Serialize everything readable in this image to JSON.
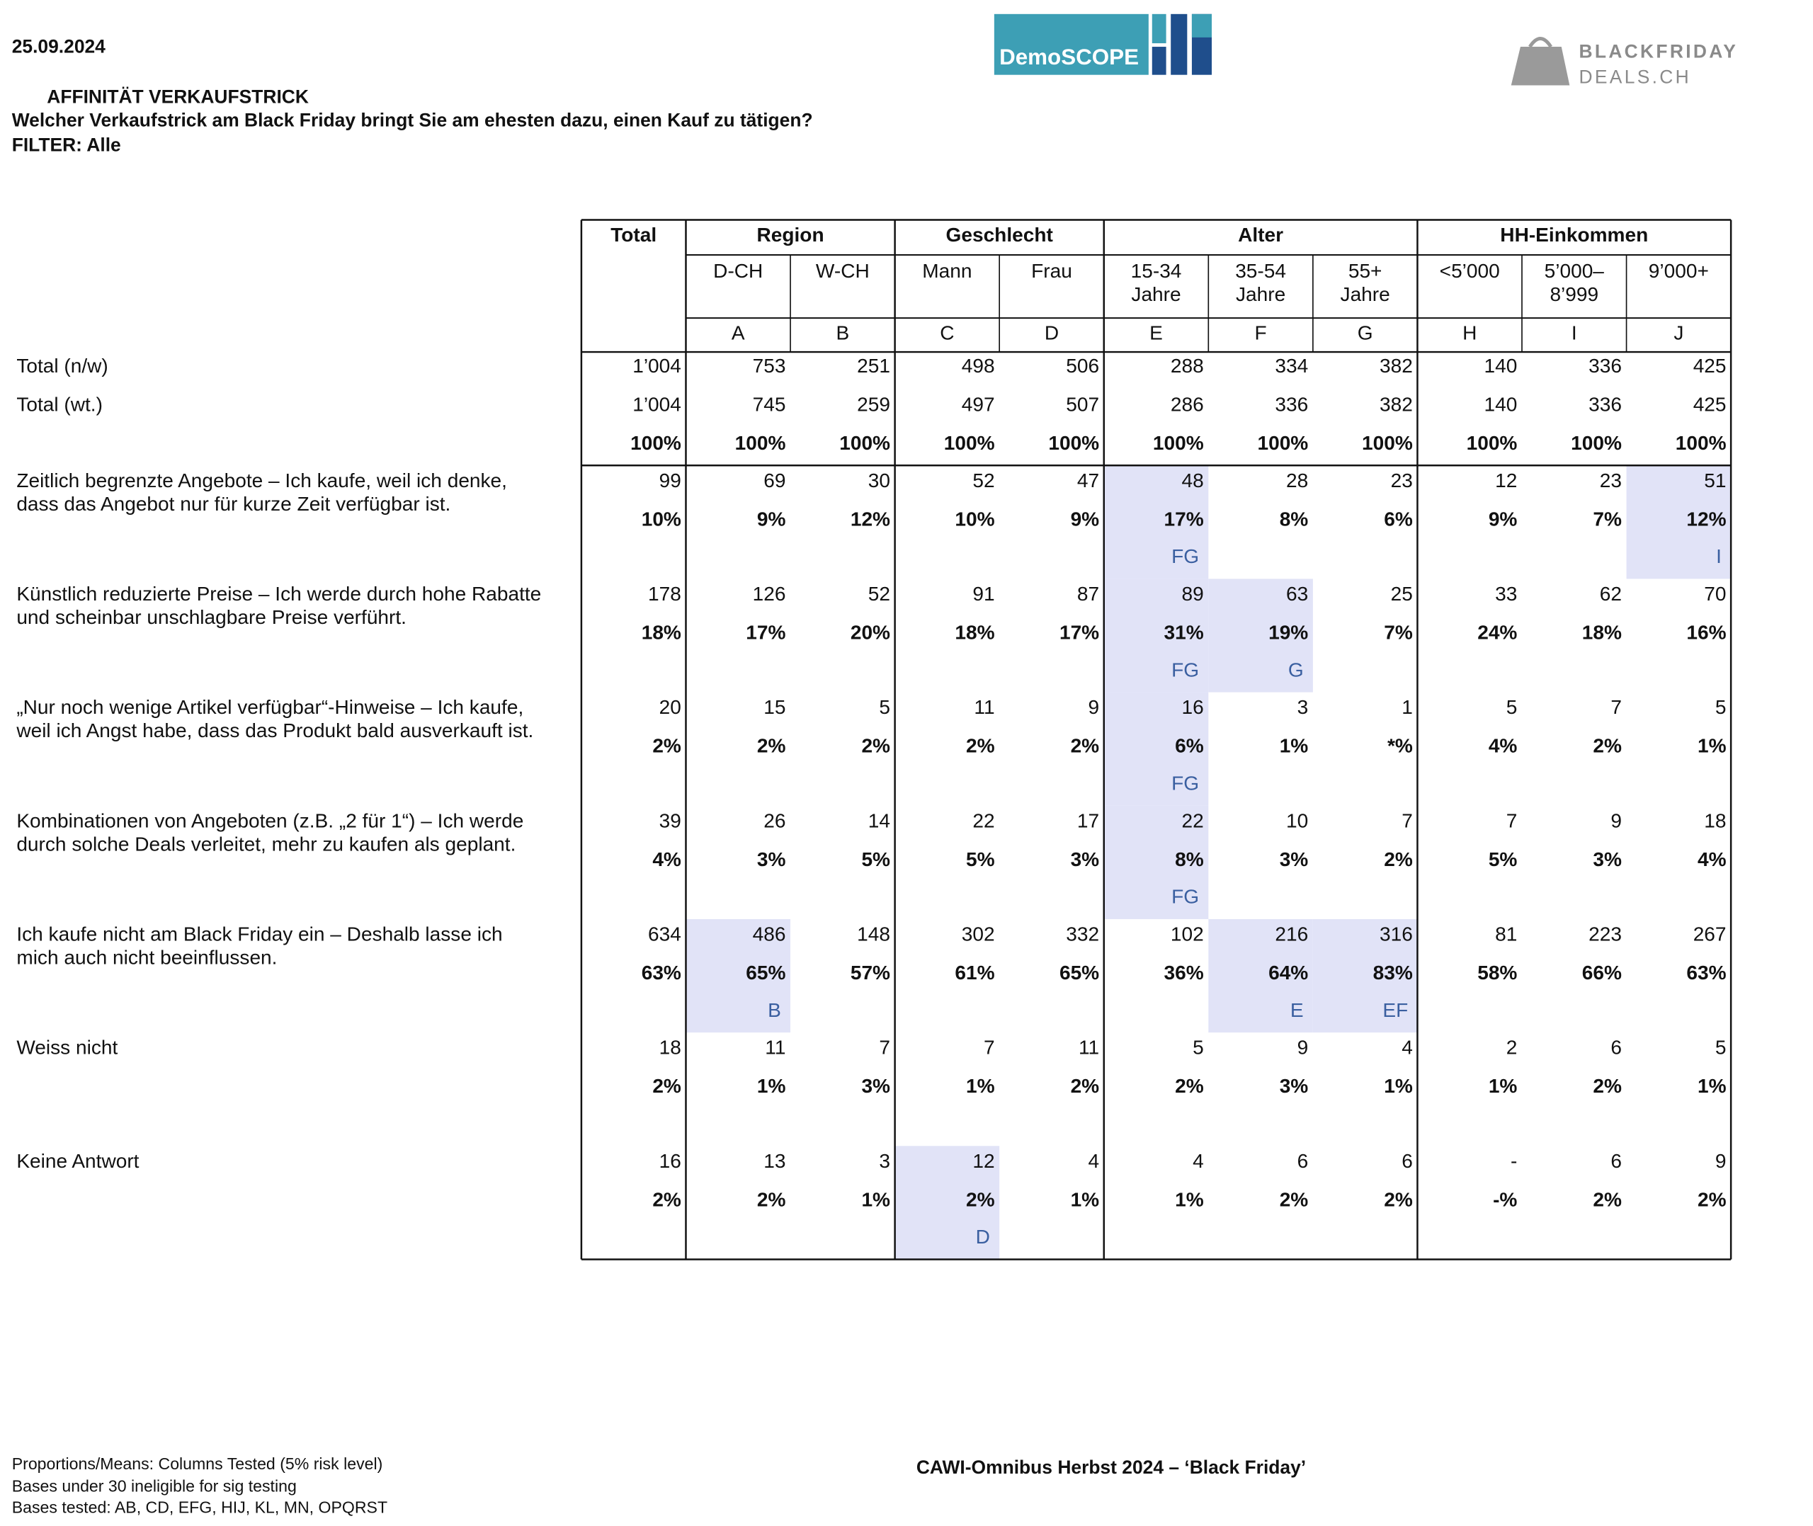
{
  "header": {
    "date": "25.09.2024",
    "title": "AFFINITÄT VERKAUFSTRICK",
    "question": "Welcher Verkaufstrick am Black Friday bringt Sie am ehesten dazu, einen Kauf zu tätigen?",
    "filter": "FILTER: Alle"
  },
  "logos": {
    "demoscope": "DemoSCOPE",
    "bfd_line1": "BLACKFRIDAY",
    "bfd_line2": "DEALS.CH"
  },
  "table": {
    "total_label": "Total",
    "groups": [
      {
        "label": "Region",
        "columns": [
          {
            "lines": [
              "D-CH"
            ],
            "letter": "A"
          },
          {
            "lines": [
              "W-CH"
            ],
            "letter": "B"
          }
        ]
      },
      {
        "label": "Geschlecht",
        "columns": [
          {
            "lines": [
              "Mann"
            ],
            "letter": "C"
          },
          {
            "lines": [
              "Frau"
            ],
            "letter": "D"
          }
        ]
      },
      {
        "label": "Alter",
        "columns": [
          {
            "lines": [
              "15-34",
              "Jahre"
            ],
            "letter": "E"
          },
          {
            "lines": [
              "35-54",
              "Jahre"
            ],
            "letter": "F"
          },
          {
            "lines": [
              "55+",
              "Jahre"
            ],
            "letter": "G"
          }
        ]
      },
      {
        "label": "HH-Einkommen",
        "columns": [
          {
            "lines": [
              "<5’000"
            ],
            "letter": "H"
          },
          {
            "lines": [
              "5’000–",
              "8’999"
            ],
            "letter": "I"
          },
          {
            "lines": [
              "9’000+"
            ],
            "letter": "J"
          }
        ]
      }
    ],
    "bases": [
      {
        "label": "Total (n/w)",
        "values": [
          "1’004",
          "753",
          "251",
          "498",
          "506",
          "288",
          "334",
          "382",
          "140",
          "336",
          "425"
        ]
      },
      {
        "label": "Total (wt.)",
        "values": [
          "1’004",
          "745",
          "259",
          "497",
          "507",
          "286",
          "336",
          "382",
          "140",
          "336",
          "425"
        ]
      }
    ],
    "base_percents": [
      "100%",
      "100%",
      "100%",
      "100%",
      "100%",
      "100%",
      "100%",
      "100%",
      "100%",
      "100%",
      "100%"
    ],
    "rows": [
      {
        "lines": [
          "Zeitlich begrenzte Angebote – Ich kaufe, weil ich denke,",
          "dass das Angebot nur für kurze Zeit verfügbar ist."
        ],
        "counts": [
          "99",
          "69",
          "30",
          "52",
          "47",
          "48",
          "28",
          "23",
          "12",
          "23",
          "51"
        ],
        "percents": [
          "10%",
          "9%",
          "12%",
          "10%",
          "9%",
          "17%",
          "8%",
          "6%",
          "9%",
          "7%",
          "12%"
        ],
        "sig": [
          null,
          null,
          null,
          null,
          null,
          "FG",
          null,
          null,
          null,
          null,
          "I"
        ]
      },
      {
        "lines": [
          "Künstlich reduzierte Preise – Ich werde durch hohe Rabatte",
          "und scheinbar unschlagbare Preise verführt."
        ],
        "counts": [
          "178",
          "126",
          "52",
          "91",
          "87",
          "89",
          "63",
          "25",
          "33",
          "62",
          "70"
        ],
        "percents": [
          "18%",
          "17%",
          "20%",
          "18%",
          "17%",
          "31%",
          "19%",
          "7%",
          "24%",
          "18%",
          "16%"
        ],
        "sig": [
          null,
          null,
          null,
          null,
          null,
          "FG",
          "G",
          null,
          null,
          null,
          null
        ]
      },
      {
        "lines": [
          "„Nur noch wenige Artikel verfügbar“-Hinweise – Ich kaufe,",
          "weil ich Angst habe, dass das Produkt bald ausverkauft ist."
        ],
        "counts": [
          "20",
          "15",
          "5",
          "11",
          "9",
          "16",
          "3",
          "1",
          "5",
          "7",
          "5"
        ],
        "percents": [
          "2%",
          "2%",
          "2%",
          "2%",
          "2%",
          "6%",
          "1%",
          "*%",
          "4%",
          "2%",
          "1%"
        ],
        "sig": [
          null,
          null,
          null,
          null,
          null,
          "FG",
          null,
          null,
          null,
          null,
          null
        ]
      },
      {
        "lines": [
          "Kombinationen von Angeboten (z.B. „2 für 1“) – Ich werde",
          "durch solche Deals verleitet, mehr zu kaufen als geplant."
        ],
        "counts": [
          "39",
          "26",
          "14",
          "22",
          "17",
          "22",
          "10",
          "7",
          "7",
          "9",
          "18"
        ],
        "percents": [
          "4%",
          "3%",
          "5%",
          "5%",
          "3%",
          "8%",
          "3%",
          "2%",
          "5%",
          "3%",
          "4%"
        ],
        "sig": [
          null,
          null,
          null,
          null,
          null,
          "FG",
          null,
          null,
          null,
          null,
          null
        ]
      },
      {
        "lines": [
          "Ich kaufe nicht am Black Friday ein – Deshalb lasse ich",
          "mich auch nicht beeinflussen."
        ],
        "counts": [
          "634",
          "486",
          "148",
          "302",
          "332",
          "102",
          "216",
          "316",
          "81",
          "223",
          "267"
        ],
        "percents": [
          "63%",
          "65%",
          "57%",
          "61%",
          "65%",
          "36%",
          "64%",
          "83%",
          "58%",
          "66%",
          "63%"
        ],
        "sig": [
          null,
          "B",
          null,
          null,
          null,
          null,
          "E",
          "EF",
          null,
          null,
          null
        ]
      },
      {
        "lines": [
          "Weiss nicht"
        ],
        "counts": [
          "18",
          "11",
          "7",
          "7",
          "11",
          "5",
          "9",
          "4",
          "2",
          "6",
          "5"
        ],
        "percents": [
          "2%",
          "1%",
          "3%",
          "1%",
          "2%",
          "2%",
          "3%",
          "1%",
          "1%",
          "2%",
          "1%"
        ],
        "sig": [
          null,
          null,
          null,
          null,
          null,
          null,
          null,
          null,
          null,
          null,
          null
        ]
      },
      {
        "lines": [
          "Keine Antwort"
        ],
        "counts": [
          "16",
          "13",
          "3",
          "12",
          "4",
          "4",
          "6",
          "6",
          "-",
          "6",
          "9"
        ],
        "percents": [
          "2%",
          "2%",
          "1%",
          "2%",
          "1%",
          "1%",
          "2%",
          "2%",
          "-%",
          "2%",
          "2%"
        ],
        "sig": [
          null,
          null,
          null,
          "D",
          null,
          null,
          null,
          null,
          null,
          null,
          null
        ]
      }
    ]
  },
  "footer": {
    "notes": [
      "Proportions/Means: Columns Tested (5% risk level)",
      "Bases under 30 ineligible for sig testing",
      "Bases tested: AB, CD, EFG, HIJ, KL, MN, OPQRST"
    ],
    "center": "CAWI-Omnibus Herbst 2024 – ‘Black Friday’"
  }
}
